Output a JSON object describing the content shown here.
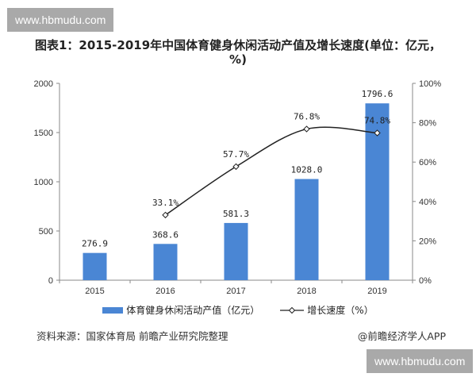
{
  "watermark": "www.hbmudu.com",
  "title": "图表1：2015-2019年中国体育健身休闲活动产值及增长速度(单位：亿元，%)",
  "source": "资料来源：国家体育局 前瞻产业研究院整理",
  "credit": "@前瞻经济学人APP",
  "colors": {
    "bar": "#4a86d4",
    "line": "#222222"
  },
  "chart_data": {
    "type": "bar+line",
    "title": "图表1：2015-2019年中国体育健身休闲活动产值及增长速度(单位：亿元，%)",
    "categories": [
      "2015",
      "2016",
      "2017",
      "2018",
      "2019"
    ],
    "series": [
      {
        "name": "体育健身休闲活动产值（亿元）",
        "type": "bar",
        "axis": "left",
        "values": [
          276.9,
          368.6,
          581.3,
          1028.0,
          1796.6
        ],
        "labels": [
          "276.9",
          "368.6",
          "581.3",
          "1028.0",
          "1796.6"
        ]
      },
      {
        "name": "增长速度（%）",
        "type": "line",
        "axis": "right",
        "values": [
          null,
          33.1,
          57.7,
          76.8,
          74.8
        ],
        "labels": [
          "",
          "33.1%",
          "57.7%",
          "76.8%",
          "74.8%"
        ]
      }
    ],
    "ylim": [
      0,
      2000
    ],
    "yticks": [
      "0",
      "500",
      "1000",
      "1500",
      "2000"
    ],
    "y2lim": [
      0,
      100
    ],
    "y2ticks": [
      "0%",
      "20%",
      "40%",
      "60%",
      "80%",
      "100%"
    ],
    "grid": false,
    "legend": "bottom"
  }
}
